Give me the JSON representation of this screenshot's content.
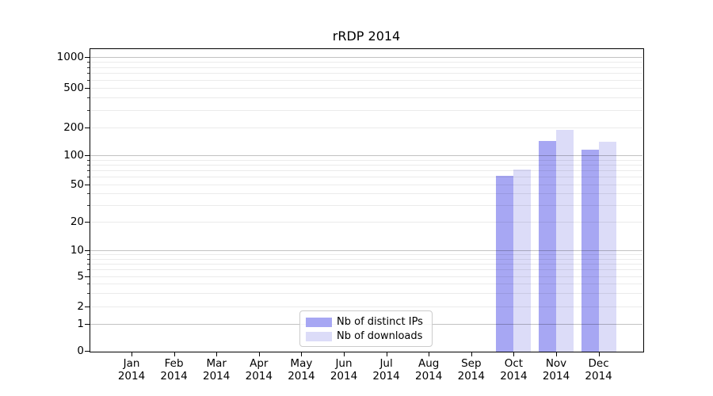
{
  "chart_data": {
    "type": "bar",
    "title": "rRDP 2014",
    "year": "2014",
    "months": [
      "Jan",
      "Feb",
      "Mar",
      "Apr",
      "May",
      "Jun",
      "Jul",
      "Aug",
      "Sep",
      "Oct",
      "Nov",
      "Dec"
    ],
    "series": [
      {
        "name": "Nb of distinct IPs",
        "color": "#a7a7f3",
        "values": [
          0,
          0,
          0,
          0,
          0,
          0,
          0,
          0,
          0,
          61,
          142,
          116
        ]
      },
      {
        "name": "Nb of downloads",
        "color": "#dcdcf8",
        "values": [
          0,
          0,
          0,
          0,
          0,
          0,
          0,
          0,
          0,
          71,
          190,
          139
        ]
      }
    ],
    "y_ticks": [
      0,
      1,
      2,
      5,
      10,
      20,
      50,
      100,
      200,
      500,
      1000
    ],
    "y_scale": "symlog",
    "ylim": [
      0,
      1000
    ],
    "xlabel": "",
    "ylabel": "",
    "grid": "both",
    "legend_position": "lower center"
  }
}
